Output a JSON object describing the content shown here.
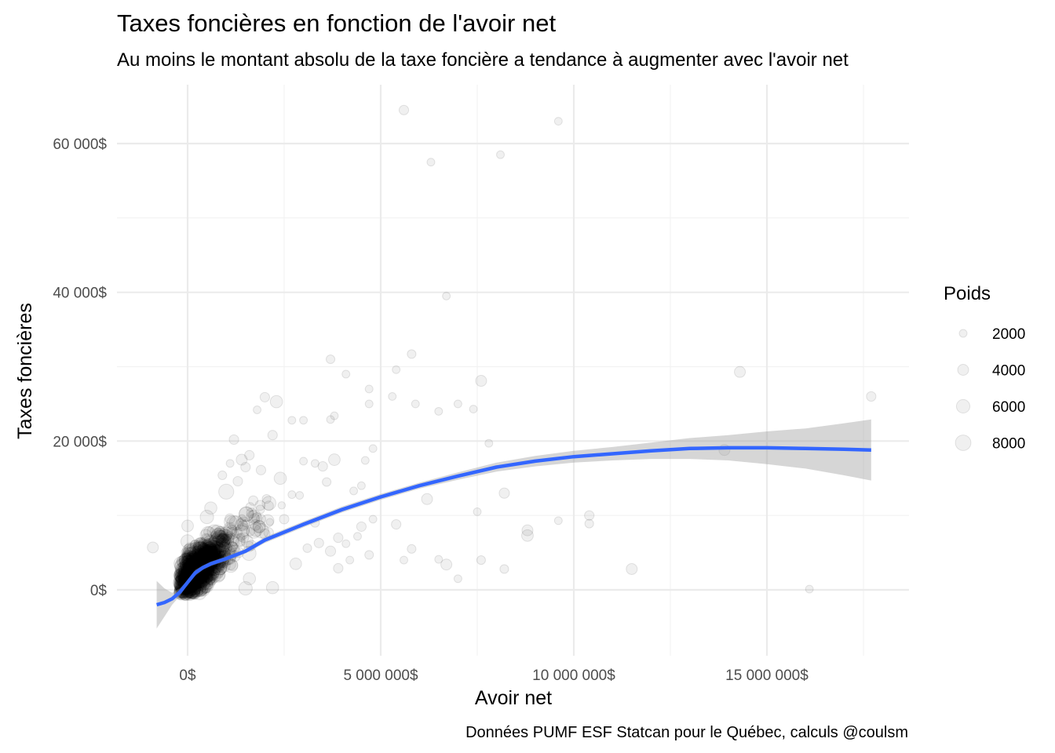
{
  "chart_data": {
    "type": "scatter",
    "title": "Taxes foncières en fonction de l'avoir net",
    "subtitle": "Au moins le montant absolu de la taxe foncière a tendance à augmenter avec l'avoir net",
    "caption": "Données PUMF ESF Statcan pour le Québec, calculs @coulsm",
    "xlabel": "Avoir net",
    "ylabel": "Taxes foncières",
    "xlim": [
      -1800000,
      18700000
    ],
    "ylim": [
      -9000,
      68000
    ],
    "x_ticks": [
      {
        "value": 0,
        "label": "0$"
      },
      {
        "value": 5000000,
        "label": "5 000 000$"
      },
      {
        "value": 10000000,
        "label": "10 000 000$"
      },
      {
        "value": 15000000,
        "label": "15 000 000$"
      }
    ],
    "y_ticks": [
      {
        "value": 0,
        "label": "0$"
      },
      {
        "value": 20000,
        "label": "20 000$"
      },
      {
        "value": 40000,
        "label": "40 000$"
      },
      {
        "value": 60000,
        "label": "60 000$"
      }
    ],
    "grid": true,
    "legend": {
      "title": "Poids",
      "position": "right",
      "entries": [
        {
          "label": "2000",
          "weight": 2000
        },
        {
          "label": "4000",
          "weight": 4000
        },
        {
          "label": "6000",
          "weight": 6000
        },
        {
          "label": "8000",
          "weight": 8000
        }
      ]
    },
    "points": [
      {
        "x": 5600000,
        "y": 64500,
        "w": 3000
      },
      {
        "x": 9600000,
        "y": 63000,
        "w": 2000
      },
      {
        "x": 6300000,
        "y": 57500,
        "w": 2000
      },
      {
        "x": 8100000,
        "y": 58500,
        "w": 2000
      },
      {
        "x": 6700000,
        "y": 39500,
        "w": 2000
      },
      {
        "x": 3700000,
        "y": 31000,
        "w": 2500
      },
      {
        "x": 5800000,
        "y": 31700,
        "w": 2500
      },
      {
        "x": 4100000,
        "y": 29000,
        "w": 2000
      },
      {
        "x": 5400000,
        "y": 29600,
        "w": 2000
      },
      {
        "x": 7600000,
        "y": 28100,
        "w": 4000
      },
      {
        "x": 14300000,
        "y": 29300,
        "w": 4000
      },
      {
        "x": 17700000,
        "y": 26000,
        "w": 3000
      },
      {
        "x": 4700000,
        "y": 27000,
        "w": 2000
      },
      {
        "x": 5300000,
        "y": 26000,
        "w": 2000
      },
      {
        "x": 7000000,
        "y": 25000,
        "w": 2000
      },
      {
        "x": 5900000,
        "y": 25000,
        "w": 2000
      },
      {
        "x": 4700000,
        "y": 25000,
        "w": 2000
      },
      {
        "x": 6500000,
        "y": 24000,
        "w": 2000
      },
      {
        "x": 7400000,
        "y": 24300,
        "w": 2000
      },
      {
        "x": 2300000,
        "y": 25300,
        "w": 5000
      },
      {
        "x": 2000000,
        "y": 25900,
        "w": 3000
      },
      {
        "x": 1800000,
        "y": 24200,
        "w": 2000
      },
      {
        "x": 2700000,
        "y": 22800,
        "w": 2000
      },
      {
        "x": 3000000,
        "y": 22800,
        "w": 2000
      },
      {
        "x": 3800000,
        "y": 23400,
        "w": 2000
      },
      {
        "x": 3700000,
        "y": 22900,
        "w": 2000
      },
      {
        "x": 2200000,
        "y": 20800,
        "w": 3000
      },
      {
        "x": 1200000,
        "y": 20200,
        "w": 3000
      },
      {
        "x": 7800000,
        "y": 19700,
        "w": 2000
      },
      {
        "x": 4800000,
        "y": 19000,
        "w": 2000
      },
      {
        "x": 13900000,
        "y": 18800,
        "w": 4000
      },
      {
        "x": 3800000,
        "y": 17500,
        "w": 4500
      },
      {
        "x": 4600000,
        "y": 17400,
        "w": 2000
      },
      {
        "x": 3000000,
        "y": 17300,
        "w": 2000
      },
      {
        "x": 3300000,
        "y": 17000,
        "w": 2000
      },
      {
        "x": 3500000,
        "y": 16600,
        "w": 3000
      },
      {
        "x": 1900000,
        "y": 16100,
        "w": 3000
      },
      {
        "x": 1500000,
        "y": 16500,
        "w": 3000
      },
      {
        "x": 2400000,
        "y": 15000,
        "w": 5000
      },
      {
        "x": 4500000,
        "y": 14000,
        "w": 2000
      },
      {
        "x": 3600000,
        "y": 14500,
        "w": 2500
      },
      {
        "x": 4300000,
        "y": 13300,
        "w": 2000
      },
      {
        "x": 6200000,
        "y": 12200,
        "w": 4000
      },
      {
        "x": 8200000,
        "y": 13000,
        "w": 3500
      },
      {
        "x": 2700000,
        "y": 12800,
        "w": 2000
      },
      {
        "x": 2900000,
        "y": 12700,
        "w": 2000
      },
      {
        "x": 1000000,
        "y": 13200,
        "w": 7500
      },
      {
        "x": 1700000,
        "y": 12000,
        "w": 3000
      },
      {
        "x": 2100000,
        "y": 11300,
        "w": 3000
      },
      {
        "x": 7500000,
        "y": 10500,
        "w": 2000
      },
      {
        "x": 10400000,
        "y": 10000,
        "w": 3000
      },
      {
        "x": 9600000,
        "y": 9300,
        "w": 2000
      },
      {
        "x": 10400000,
        "y": 8900,
        "w": 2500
      },
      {
        "x": 5400000,
        "y": 8800,
        "w": 3000
      },
      {
        "x": 8800000,
        "y": 8000,
        "w": 4000
      },
      {
        "x": 8800000,
        "y": 7300,
        "w": 4500
      },
      {
        "x": 4500000,
        "y": 8500,
        "w": 3000
      },
      {
        "x": 4800000,
        "y": 9500,
        "w": 2000
      },
      {
        "x": 4400000,
        "y": 7200,
        "w": 2000
      },
      {
        "x": 3900000,
        "y": 7000,
        "w": 3000
      },
      {
        "x": 4100000,
        "y": 6200,
        "w": 2000
      },
      {
        "x": 3400000,
        "y": 6300,
        "w": 3000
      },
      {
        "x": 3100000,
        "y": 5600,
        "w": 2500
      },
      {
        "x": 3700000,
        "y": 5200,
        "w": 3500
      },
      {
        "x": 5800000,
        "y": 5500,
        "w": 2500
      },
      {
        "x": 4700000,
        "y": 4700,
        "w": 2500
      },
      {
        "x": 4200000,
        "y": 4000,
        "w": 2000
      },
      {
        "x": 5600000,
        "y": 4000,
        "w": 2000
      },
      {
        "x": 6500000,
        "y": 4100,
        "w": 2000
      },
      {
        "x": 7600000,
        "y": 4000,
        "w": 2500
      },
      {
        "x": 6700000,
        "y": 3400,
        "w": 4000
      },
      {
        "x": 8200000,
        "y": 2800,
        "w": 2500
      },
      {
        "x": 3900000,
        "y": 2900,
        "w": 3000
      },
      {
        "x": 11500000,
        "y": 2800,
        "w": 4000
      },
      {
        "x": 7000000,
        "y": 1500,
        "w": 2000
      },
      {
        "x": 16100000,
        "y": 100,
        "w": 2000
      },
      {
        "x": -900000,
        "y": 5700,
        "w": 4000
      },
      {
        "x": 2800000,
        "y": 3500,
        "w": 4500
      },
      {
        "x": 2200000,
        "y": 300,
        "w": 5000
      },
      {
        "x": 1500000,
        "y": 200,
        "w": 6000
      },
      {
        "x": 1600000,
        "y": 1500,
        "w": 5000
      },
      {
        "x": 2000000,
        "y": 7500,
        "w": 3500
      },
      {
        "x": 1900000,
        "y": 9500,
        "w": 3000
      },
      {
        "x": 1300000,
        "y": 14600,
        "w": 3000
      },
      {
        "x": 900000,
        "y": 15400,
        "w": 2500
      },
      {
        "x": 1600000,
        "y": 18100,
        "w": 3000
      },
      {
        "x": 1400000,
        "y": 17500,
        "w": 4000
      },
      {
        "x": 1100000,
        "y": 17000,
        "w": 2000
      },
      {
        "x": 600000,
        "y": 11000,
        "w": 5000
      },
      {
        "x": 500000,
        "y": 9800,
        "w": 6000
      },
      {
        "x": 0,
        "y": 8600,
        "w": 4500
      },
      {
        "x": 0,
        "y": 6500,
        "w": 6000
      },
      {
        "x": 3300000,
        "y": 9000,
        "w": 2500
      },
      {
        "x": 2500000,
        "y": 9500,
        "w": 3000
      }
    ],
    "series": [
      {
        "type": "smooth",
        "x": [
          -800000,
          -600000,
          -400000,
          -200000,
          0,
          200000,
          400000,
          600000,
          1000000,
          1500000,
          2000000,
          3000000,
          4000000,
          5000000,
          6000000,
          7000000,
          8000000,
          9000000,
          10000000,
          11000000,
          12000000,
          13000000,
          14000000,
          15000000,
          16000000,
          17000000,
          17700000
        ],
        "y": [
          -2000,
          -1700,
          -1200,
          -300,
          1000,
          2300,
          3000,
          3500,
          4200,
          5200,
          6700,
          8800,
          10800,
          12500,
          14000,
          15300,
          16500,
          17300,
          17900,
          18300,
          18700,
          19000,
          19100,
          19100,
          19000,
          18900,
          18800
        ],
        "lower": [
          -5200,
          -3600,
          -2000,
          -800,
          700,
          1900,
          2700,
          3200,
          3900,
          4900,
          6300,
          8400,
          10400,
          12100,
          13600,
          14800,
          15900,
          16600,
          17100,
          17400,
          17600,
          17600,
          17400,
          16900,
          16300,
          15400,
          14700
        ],
        "upper": [
          1200,
          200,
          -400,
          200,
          1300,
          2700,
          3300,
          3800,
          4500,
          5500,
          7100,
          9200,
          11200,
          12900,
          14400,
          15800,
          17100,
          18000,
          18700,
          19200,
          19800,
          20400,
          20800,
          21300,
          21700,
          22400,
          22900
        ]
      }
    ]
  }
}
